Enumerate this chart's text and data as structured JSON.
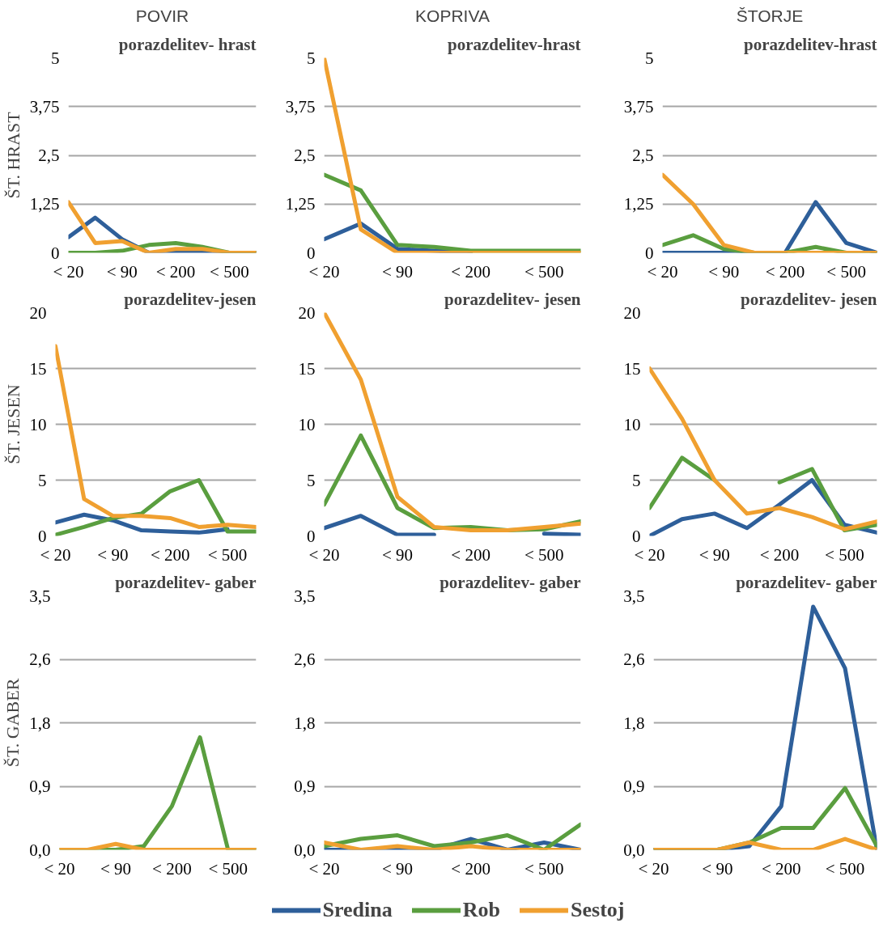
{
  "chart_data": [
    {
      "type": "line",
      "subtitle": "POVIR",
      "title": "porazdelitev- hrast",
      "ylabel": "ŠT. HRAST",
      "categories": [
        "< 20",
        null,
        "< 90",
        null,
        "< 200",
        null,
        "< 500",
        null
      ],
      "ylim": [
        0,
        5
      ],
      "yticks": [
        0,
        {
          "value": 1.25,
          "label": "1,25"
        },
        {
          "value": 2.5,
          "label": "2,5"
        },
        {
          "value": 3.75,
          "label": "3,75"
        },
        5
      ],
      "grid": "y",
      "line_style": "solid",
      "series": [
        {
          "color": "#2e5f9a",
          "values": [
            0.4,
            0.9,
            0.35,
            0,
            0,
            0,
            0,
            0
          ]
        },
        {
          "color": "#5a9e3f",
          "values": [
            0,
            0,
            0.05,
            0.2,
            0.25,
            0.15,
            0,
            0
          ]
        },
        {
          "color": "#f0a030",
          "values": [
            1.3,
            0.25,
            0.3,
            0,
            0.1,
            0.1,
            0,
            0
          ]
        }
      ]
    },
    {
      "type": "line",
      "subtitle": "KOPRIVA",
      "title": "porazdelitev-hrast",
      "categories": [
        "< 20",
        null,
        "< 90",
        null,
        "< 200",
        null,
        "< 500",
        null
      ],
      "ylim": [
        0,
        5
      ],
      "yticks": [
        0,
        {
          "value": 1.25,
          "label": "1,25"
        },
        {
          "value": 2.5,
          "label": "2,5"
        },
        {
          "value": 3.75,
          "label": "3,75"
        },
        5
      ],
      "grid": "y",
      "line_style": "solid",
      "series": [
        {
          "color": "#2e5f9a",
          "values": [
            0.35,
            0.75,
            0.1,
            0.05,
            0,
            null,
            null,
            null
          ]
        },
        {
          "color": "#5a9e3f",
          "values": [
            2.0,
            1.6,
            0.2,
            0.15,
            0.05,
            0.05,
            0.05,
            0.05
          ]
        },
        {
          "color": "#f0a030",
          "values": [
            5,
            0.6,
            0,
            0,
            0,
            0,
            0,
            0
          ]
        }
      ]
    },
    {
      "type": "line",
      "subtitle": "ŠTORJE",
      "title": "porazdelitev-hrast",
      "categories": [
        "< 20",
        null,
        "< 90",
        null,
        "< 200",
        null,
        "< 500",
        null
      ],
      "ylim": [
        0,
        5
      ],
      "yticks": [
        0,
        {
          "value": 1.25,
          "label": "1,25"
        },
        {
          "value": 2.5,
          "label": "2,5"
        },
        {
          "value": 3.75,
          "label": "3,75"
        },
        5
      ],
      "grid": "y",
      "line_style": "solid",
      "series": [
        {
          "color": "#2e5f9a",
          "values": [
            0,
            0,
            0,
            0,
            0,
            1.3,
            0.25,
            0
          ]
        },
        {
          "color": "#5a9e3f",
          "values": [
            0.2,
            0.45,
            0.1,
            0,
            0,
            0.15,
            0,
            0
          ]
        },
        {
          "color": "#f0a030",
          "values": [
            2.0,
            1.25,
            0.2,
            0,
            0,
            0,
            0,
            0
          ]
        }
      ]
    },
    {
      "type": "line",
      "title": "porazdelitev-jesen",
      "ylabel": "ŠT. JESEN",
      "categories": [
        "< 20",
        null,
        "< 90",
        null,
        "< 200",
        null,
        "< 500",
        null
      ],
      "ylim": [
        0,
        20
      ],
      "yticks": [
        0,
        5,
        10,
        15,
        20
      ],
      "grid": "y",
      "line_style": "solid",
      "series": [
        {
          "color": "#2e5f9a",
          "values": [
            1.2,
            1.9,
            1.4,
            0.5,
            0.4,
            0.3,
            0.6,
            null
          ]
        },
        {
          "color": "#5a9e3f",
          "values": [
            0.1,
            0.8,
            1.6,
            2,
            4,
            5,
            0.4,
            0.4
          ]
        },
        {
          "color": "#f0a030",
          "values": [
            17,
            3.3,
            1.8,
            1.8,
            1.6,
            0.8,
            1,
            0.8
          ]
        }
      ]
    },
    {
      "type": "line",
      "title": "porazdelitev- jesen",
      "categories": [
        "< 20",
        null,
        "< 90",
        null,
        "< 200",
        null,
        "< 500",
        null
      ],
      "ylim": [
        0,
        20
      ],
      "yticks": [
        0,
        5,
        10,
        15,
        20
      ],
      "grid": "y",
      "line_style": "solid",
      "series": [
        {
          "color": "#2e5f9a",
          "values": [
            0.7,
            1.8,
            0.1,
            0.1,
            null,
            null,
            0.2,
            0.1
          ]
        },
        {
          "color": "#5a9e3f",
          "values": [
            2.8,
            9,
            2.5,
            0.7,
            0.8,
            0.5,
            0.6,
            1.3
          ]
        },
        {
          "color": "#f0a030",
          "values": [
            20,
            14,
            3.5,
            0.8,
            0.5,
            0.5,
            0.8,
            1.1
          ]
        }
      ]
    },
    {
      "type": "line",
      "title": "porazdelitev- jesen",
      "categories": [
        "< 20",
        null,
        "< 90",
        null,
        "< 200",
        null,
        "< 500",
        null
      ],
      "ylim": [
        0,
        20
      ],
      "yticks": [
        0,
        5,
        10,
        15,
        20
      ],
      "grid": "y",
      "line_style": "solid",
      "series": [
        {
          "color": "#2e5f9a",
          "values": [
            0,
            1.5,
            2,
            0.7,
            2.8,
            5,
            1,
            0.3
          ]
        },
        {
          "color": "#5a9e3f",
          "values": [
            2.5,
            7,
            5,
            null,
            4.8,
            6,
            0.5,
            1
          ]
        },
        {
          "color": "#f0a030",
          "values": [
            15,
            10.5,
            5,
            2,
            2.5,
            1.7,
            0.6,
            1.3
          ]
        }
      ]
    },
    {
      "type": "line",
      "title": "porazdelitev- gaber",
      "ylabel": "ŠT. GABER",
      "categories": [
        "< 20",
        null,
        "< 90",
        null,
        "< 200",
        null,
        "< 500",
        null
      ],
      "ylim": [
        0,
        3.5
      ],
      "yticks": [
        {
          "value": 0,
          "label": "0,0"
        },
        {
          "value": 0.875,
          "label": "0,9"
        },
        {
          "value": 1.75,
          "label": "1,8"
        },
        {
          "value": 2.625,
          "label": "2,6"
        },
        {
          "value": 3.5,
          "label": "3,5"
        }
      ],
      "grid": "y",
      "line_style": "solid",
      "series": [
        {
          "color": "#2e5f9a",
          "values": [
            null,
            null,
            null,
            null,
            null,
            null,
            null,
            null
          ]
        },
        {
          "color": "#5a9e3f",
          "values": [
            0,
            0,
            0,
            0.05,
            0.6,
            1.55,
            0,
            0
          ]
        },
        {
          "color": "#f0a030",
          "values": [
            0,
            0,
            0.08,
            0,
            0,
            0,
            0,
            0
          ]
        }
      ]
    },
    {
      "type": "line",
      "title": "porazdelitev- gaber",
      "categories": [
        "< 20",
        null,
        "< 90",
        null,
        "< 200",
        null,
        "< 500",
        null
      ],
      "ylim": [
        0,
        3.5
      ],
      "yticks": [
        {
          "value": 0,
          "label": "0,0"
        },
        {
          "value": 0.875,
          "label": "0,9"
        },
        {
          "value": 1.75,
          "label": "1,8"
        },
        {
          "value": 2.625,
          "label": "2,6"
        },
        {
          "value": 3.5,
          "label": "3,5"
        }
      ],
      "grid": "y",
      "line_style": "solid",
      "legend": "bottom",
      "series": [
        {
          "name": "Sredina",
          "color": "#2e5f9a",
          "values": [
            0,
            0,
            0,
            0,
            0.15,
            0,
            0.1,
            0
          ]
        },
        {
          "name": "Rob",
          "color": "#5a9e3f",
          "values": [
            0.05,
            0.15,
            0.2,
            0.05,
            0.1,
            0.2,
            0,
            0.35
          ]
        },
        {
          "name": "Sestoj",
          "color": "#f0a030",
          "values": [
            0.1,
            0,
            0.05,
            0,
            0.05,
            0,
            0,
            0
          ]
        }
      ]
    },
    {
      "type": "line",
      "title": "porazdelitev- gaber",
      "categories": [
        "< 20",
        null,
        "< 90",
        null,
        "< 200",
        null,
        "< 500",
        null
      ],
      "ylim": [
        0,
        3.5
      ],
      "yticks": [
        {
          "value": 0,
          "label": "0,0"
        },
        {
          "value": 0.875,
          "label": "0,9"
        },
        {
          "value": 1.75,
          "label": "1,8"
        },
        {
          "value": 2.625,
          "label": "2,6"
        },
        {
          "value": 3.5,
          "label": "3,5"
        }
      ],
      "grid": "y",
      "line_style": "solid",
      "series": [
        {
          "color": "#2e5f9a",
          "values": [
            0,
            0,
            0,
            0.05,
            0.6,
            3.35,
            2.5,
            0
          ]
        },
        {
          "color": "#5a9e3f",
          "values": [
            0,
            0,
            0,
            0.1,
            0.3,
            0.3,
            0.85,
            0.05
          ]
        },
        {
          "color": "#f0a030",
          "values": [
            0,
            0,
            0,
            0.1,
            0,
            0,
            0.15,
            0
          ]
        }
      ]
    }
  ]
}
